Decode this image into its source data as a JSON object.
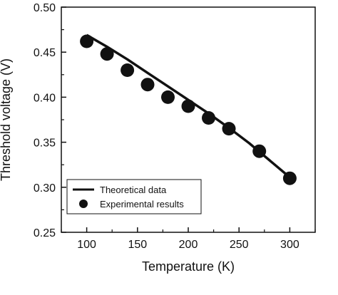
{
  "chart_data": {
    "type": "line",
    "xlabel": "Temperature (K)",
    "ylabel": "Threshold voltage (V)",
    "xlim": [
      75,
      325
    ],
    "ylim": [
      0.25,
      0.5
    ],
    "x_ticks": [
      100,
      150,
      200,
      250,
      300
    ],
    "x_tick_labels": [
      "100",
      "150",
      "200",
      "250",
      "300"
    ],
    "y_ticks": [
      0.25,
      0.3,
      0.35,
      0.4,
      0.45,
      0.5
    ],
    "y_tick_labels": [
      "0.25",
      "0.30",
      "0.35",
      "0.40",
      "0.45",
      "0.50"
    ],
    "grid": false,
    "legend_position": "lower-left",
    "series": [
      {
        "name": "Theoretical data",
        "kind": "line",
        "color": "#111111",
        "x": [
          100,
          120,
          140,
          160,
          180,
          200,
          220,
          240,
          260,
          280,
          300
        ],
        "y": [
          0.469,
          0.456,
          0.442,
          0.427,
          0.412,
          0.397,
          0.382,
          0.366,
          0.349,
          0.33,
          0.311
        ]
      },
      {
        "name": "Experimental results",
        "kind": "scatter",
        "color": "#111111",
        "x": [
          100,
          120,
          140,
          160,
          180,
          200,
          220,
          240,
          270,
          300
        ],
        "y": [
          0.462,
          0.448,
          0.43,
          0.414,
          0.4,
          0.39,
          0.377,
          0.365,
          0.34,
          0.31
        ]
      }
    ]
  }
}
